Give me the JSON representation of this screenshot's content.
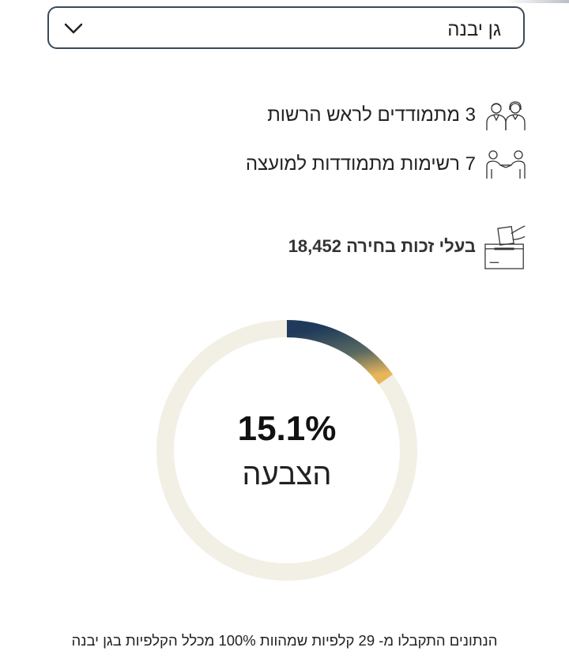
{
  "colors": {
    "accent_dark": "#1f3a5a",
    "accent_gold": "#e8b65a",
    "track": "#f2efe4",
    "border": "#3a4a5c"
  },
  "locality_select": {
    "selected": "גן יבנה",
    "icon": "chevron-down-icon"
  },
  "stats": {
    "mayor_candidates": {
      "text": "3 מתמודדים לראש הרשות",
      "icon": "candidates-icon"
    },
    "council_lists": {
      "text": "7 רשימות מתמודדות למועצה",
      "icon": "handshake-icon"
    },
    "eligible_voters": {
      "text": "בעלי זכות בחירה 18,452",
      "icon": "ballot-box-icon"
    }
  },
  "turnout": {
    "value_text": "15.1%",
    "fraction": 0.151,
    "label": "הצבעה"
  },
  "footer_note": "הנתונים התקבלו מ- 29 קלפיות שמהוות 100% מכלל הקלפיות בגן יבנה"
}
